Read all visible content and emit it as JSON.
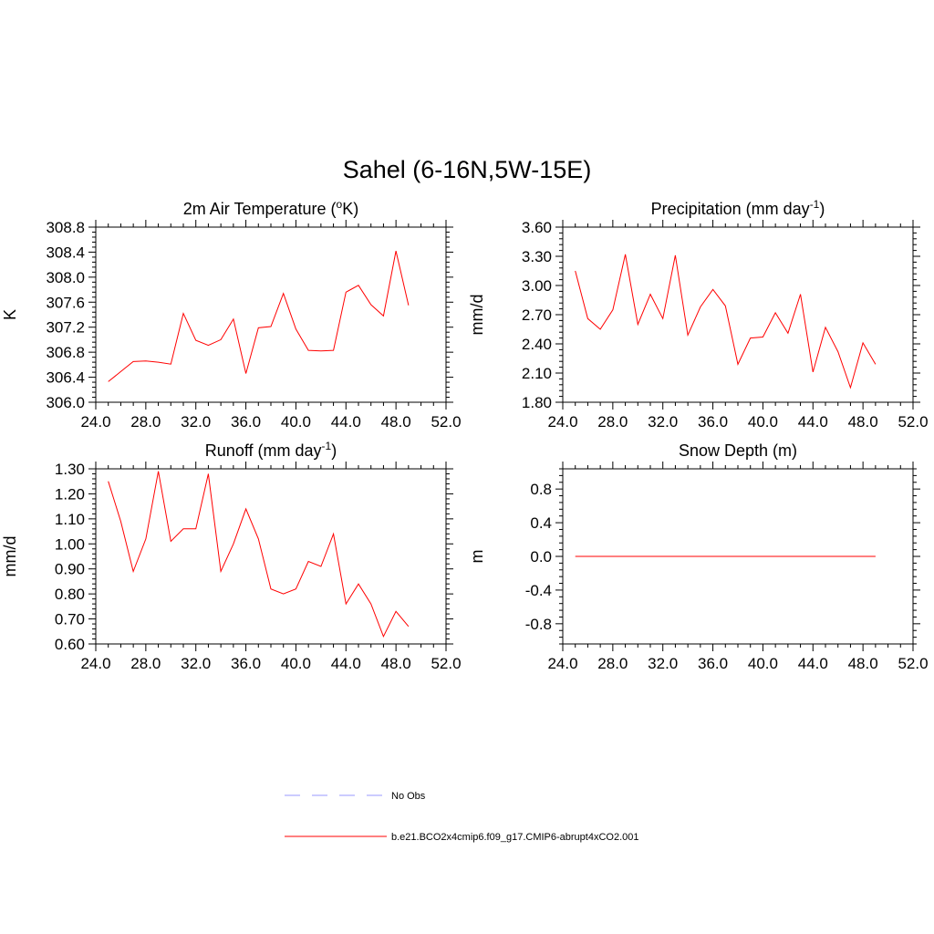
{
  "title": "Sahel (6-16N,5W-15E)",
  "colors": {
    "series": "#ff0000",
    "obs": "#9999ff",
    "axis": "#000000"
  },
  "legend": [
    {
      "label": "No Obs",
      "style": "dashed",
      "color": "#9999ff"
    },
    {
      "label": "b.e21.BCO2x4cmip6.f09_g17.CMIP6-abrupt4xCO2.001",
      "style": "solid",
      "color": "#ff0000"
    }
  ],
  "chart_data": [
    {
      "type": "line",
      "title": "2m Air Temperature (",
      "title_sup": "o",
      "title_tail": "K)",
      "title_sup_after": "",
      "ylabel": "K",
      "xlim": [
        24,
        52
      ],
      "ylim": [
        306.0,
        308.8
      ],
      "xticks": [
        "24.0",
        "28.0",
        "32.0",
        "36.0",
        "40.0",
        "44.0",
        "48.0",
        "52.0"
      ],
      "xtick_values": [
        24,
        28,
        32,
        36,
        40,
        44,
        48,
        52
      ],
      "yticks": [
        "306.0",
        "306.4",
        "306.8",
        "307.2",
        "307.6",
        "308.0",
        "308.4",
        "308.8"
      ],
      "ytick_values": [
        306.0,
        306.4,
        306.8,
        307.2,
        307.6,
        308.0,
        308.4,
        308.8
      ],
      "series": [
        {
          "x": [
            25,
            26,
            27,
            28,
            29,
            30,
            31,
            32,
            33,
            34,
            35,
            36,
            37,
            38,
            39,
            40,
            41,
            42,
            43,
            44,
            45,
            46,
            47,
            48,
            49
          ],
          "y": [
            306.33,
            306.49,
            306.65,
            306.66,
            306.64,
            306.61,
            307.42,
            306.99,
            306.91,
            307.0,
            307.33,
            306.46,
            307.19,
            307.21,
            307.74,
            307.17,
            306.83,
            306.82,
            306.83,
            307.76,
            307.87,
            307.56,
            307.38,
            308.42,
            307.55
          ]
        }
      ]
    },
    {
      "type": "line",
      "title": "Precipitation (mm day",
      "title_sup": "-1",
      "title_tail": ")",
      "ylabel": "mm/d",
      "xlim": [
        24,
        52
      ],
      "ylim": [
        1.8,
        3.6
      ],
      "xticks": [
        "24.0",
        "28.0",
        "32.0",
        "36.0",
        "40.0",
        "44.0",
        "48.0",
        "52.0"
      ],
      "xtick_values": [
        24,
        28,
        32,
        36,
        40,
        44,
        48,
        52
      ],
      "yticks": [
        "1.80",
        "2.10",
        "2.40",
        "2.70",
        "3.00",
        "3.30",
        "3.60"
      ],
      "ytick_values": [
        1.8,
        2.1,
        2.4,
        2.7,
        3.0,
        3.3,
        3.6
      ],
      "series": [
        {
          "x": [
            25,
            26,
            27,
            28,
            29,
            30,
            31,
            32,
            33,
            34,
            35,
            36,
            37,
            38,
            39,
            40,
            41,
            42,
            43,
            44,
            45,
            46,
            47,
            48,
            49
          ],
          "y": [
            3.15,
            2.66,
            2.55,
            2.75,
            3.32,
            2.6,
            2.91,
            2.66,
            3.31,
            2.49,
            2.78,
            2.96,
            2.79,
            2.19,
            2.46,
            2.47,
            2.72,
            2.51,
            2.91,
            2.11,
            2.57,
            2.32,
            1.95,
            2.41,
            2.19
          ]
        }
      ]
    },
    {
      "type": "line",
      "title": "Runoff (mm day",
      "title_sup": "-1",
      "title_tail": ")",
      "ylabel": "mm/d",
      "xlim": [
        24,
        52
      ],
      "ylim": [
        0.6,
        1.3
      ],
      "xticks": [
        "24.0",
        "28.0",
        "32.0",
        "36.0",
        "40.0",
        "44.0",
        "48.0",
        "52.0"
      ],
      "xtick_values": [
        24,
        28,
        32,
        36,
        40,
        44,
        48,
        52
      ],
      "yticks": [
        "0.60",
        "0.70",
        "0.80",
        "0.90",
        "1.00",
        "1.10",
        "1.20",
        "1.30"
      ],
      "ytick_values": [
        0.6,
        0.7,
        0.8,
        0.9,
        1.0,
        1.1,
        1.2,
        1.3
      ],
      "series": [
        {
          "x": [
            25,
            26,
            27,
            28,
            29,
            30,
            31,
            32,
            33,
            34,
            35,
            36,
            37,
            38,
            39,
            40,
            41,
            42,
            43,
            44,
            45,
            46,
            47,
            48,
            49
          ],
          "y": [
            1.25,
            1.09,
            0.89,
            1.02,
            1.29,
            1.01,
            1.06,
            1.06,
            1.28,
            0.89,
            1.0,
            1.14,
            1.02,
            0.82,
            0.8,
            0.82,
            0.93,
            0.91,
            1.04,
            0.76,
            0.84,
            0.76,
            0.63,
            0.73,
            0.67
          ]
        }
      ]
    },
    {
      "type": "line",
      "title": "Snow Depth (m)",
      "title_sup": "",
      "title_tail": "",
      "ylabel": "m",
      "xlim": [
        24,
        52
      ],
      "ylim": [
        -1.04,
        1.04
      ],
      "xticks": [
        "24.0",
        "28.0",
        "32.0",
        "36.0",
        "40.0",
        "44.0",
        "48.0",
        "52.0"
      ],
      "xtick_values": [
        24,
        28,
        32,
        36,
        40,
        44,
        48,
        52
      ],
      "yticks": [
        "-0.8",
        "-0.4",
        "0.0",
        "0.4",
        "0.8"
      ],
      "ytick_values": [
        -0.8,
        -0.4,
        0.0,
        0.4,
        0.8
      ],
      "series": [
        {
          "x": [
            25,
            26,
            27,
            28,
            29,
            30,
            31,
            32,
            33,
            34,
            35,
            36,
            37,
            38,
            39,
            40,
            41,
            42,
            43,
            44,
            45,
            46,
            47,
            48,
            49
          ],
          "y": [
            0,
            0,
            0,
            0,
            0,
            0,
            0,
            0,
            0,
            0,
            0,
            0,
            0,
            0,
            0,
            0,
            0,
            0,
            0,
            0,
            0,
            0,
            0,
            0,
            0
          ]
        }
      ]
    }
  ]
}
